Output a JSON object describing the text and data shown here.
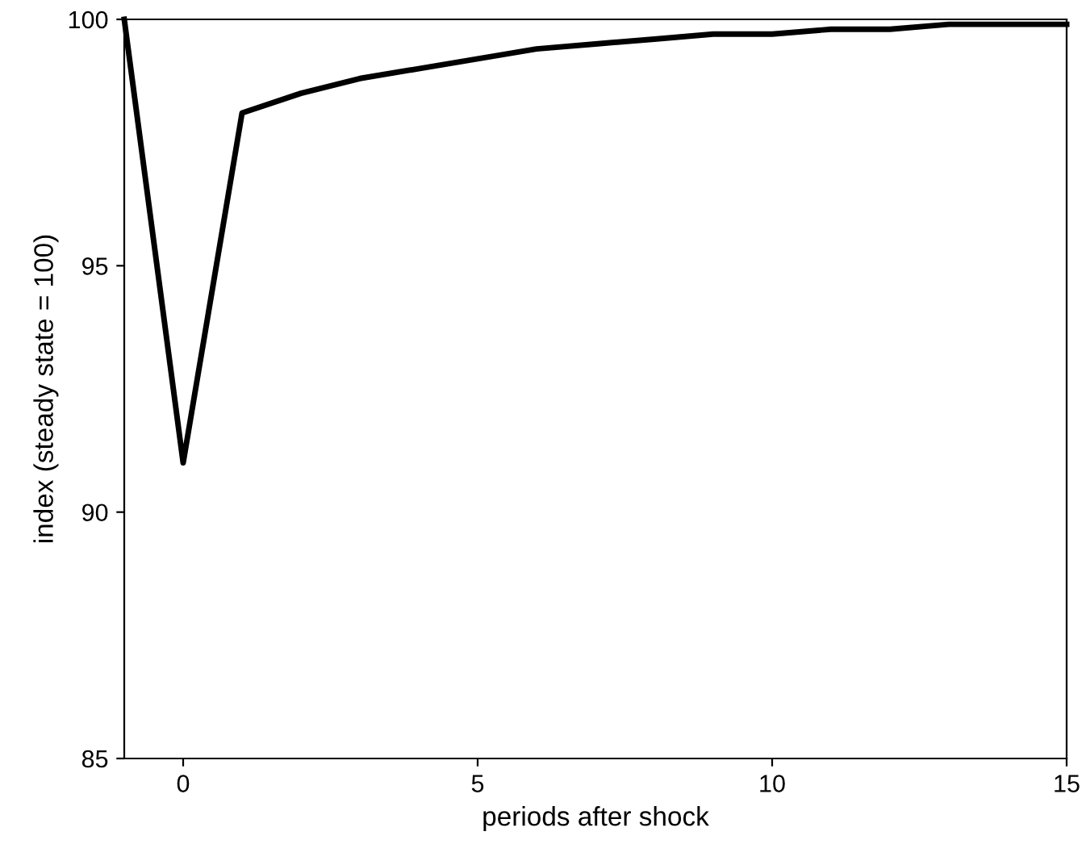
{
  "chart_data": {
    "type": "line",
    "xlabel": "periods after shock",
    "ylabel": "index (steady state = 100)",
    "x": [
      -1,
      0,
      1,
      2,
      3,
      4,
      5,
      6,
      7,
      8,
      9,
      10,
      11,
      12,
      13,
      14,
      15
    ],
    "series": [
      {
        "color": "#000000",
        "values": [
          100,
          91,
          98.1,
          98.5,
          98.8,
          99.0,
          99.2,
          99.4,
          99.5,
          99.6,
          99.7,
          99.7,
          99.8,
          99.8,
          99.9,
          99.9,
          99.9
        ]
      }
    ],
    "xlim": [
      -1,
      15
    ],
    "xticks": [
      0,
      5,
      10,
      15
    ],
    "ylim": [
      85,
      100
    ],
    "yticks": [
      85,
      90,
      95,
      100
    ],
    "grid": false,
    "legend": false,
    "marker": "none",
    "line_style": "solid"
  }
}
